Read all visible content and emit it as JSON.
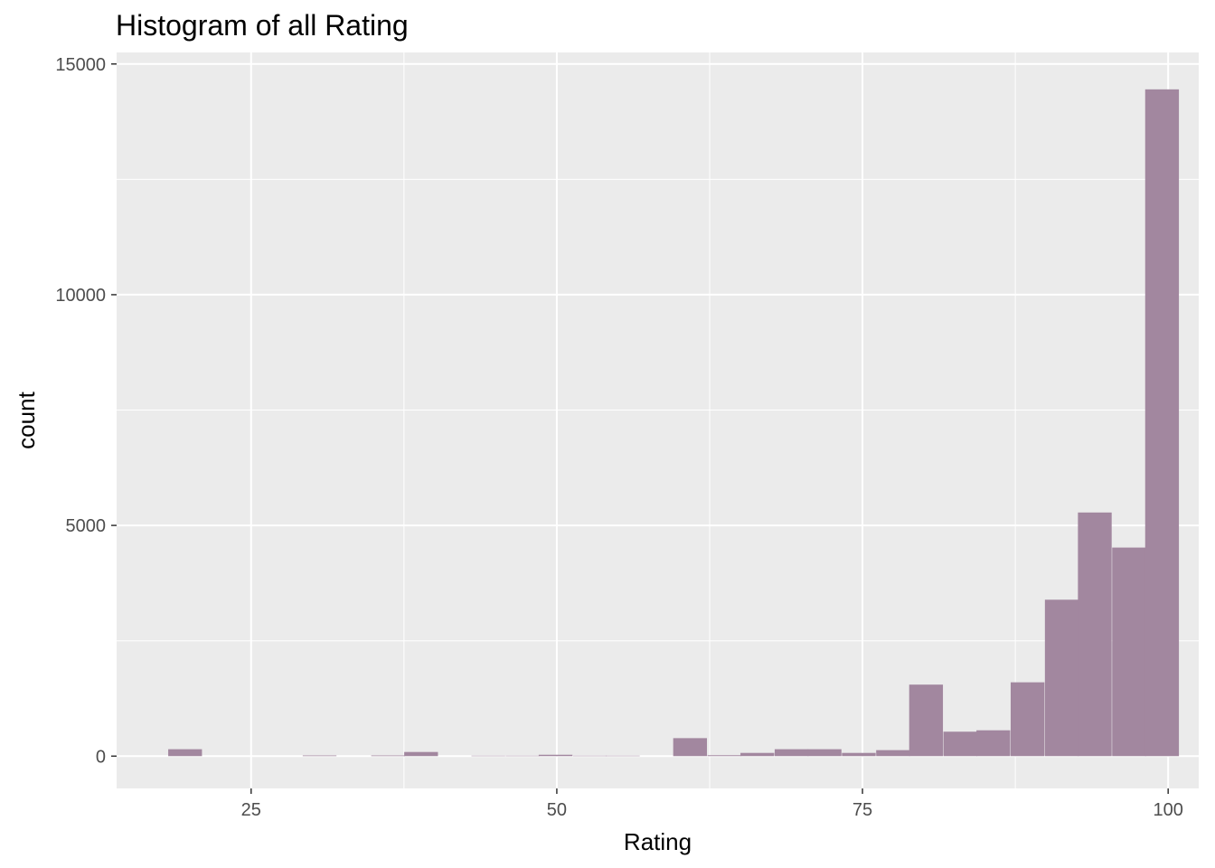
{
  "chart_data": {
    "type": "bar",
    "title": "Histogram of all Rating",
    "xlabel": "Rating",
    "ylabel": "count",
    "xlim": [
      14.0,
      102.5
    ],
    "ylim": [
      -700,
      15250
    ],
    "xticks": [
      25,
      50,
      75,
      100
    ],
    "yticks": [
      0,
      5000,
      10000,
      15000
    ],
    "bin_width": 2.76,
    "bins": [
      {
        "x": 19.6,
        "count": 150
      },
      {
        "x": 30.6,
        "count": 15
      },
      {
        "x": 36.2,
        "count": 15
      },
      {
        "x": 38.9,
        "count": 90
      },
      {
        "x": 44.4,
        "count": 10
      },
      {
        "x": 47.2,
        "count": 10
      },
      {
        "x": 49.9,
        "count": 30
      },
      {
        "x": 52.7,
        "count": 10
      },
      {
        "x": 55.4,
        "count": 10
      },
      {
        "x": 60.9,
        "count": 390
      },
      {
        "x": 63.7,
        "count": 20
      },
      {
        "x": 66.4,
        "count": 70
      },
      {
        "x": 69.2,
        "count": 150
      },
      {
        "x": 71.9,
        "count": 150
      },
      {
        "x": 74.7,
        "count": 70
      },
      {
        "x": 77.5,
        "count": 130
      },
      {
        "x": 80.2,
        "count": 1550
      },
      {
        "x": 83.0,
        "count": 530
      },
      {
        "x": 85.7,
        "count": 560
      },
      {
        "x": 88.5,
        "count": 1600
      },
      {
        "x": 91.3,
        "count": 3390
      },
      {
        "x": 94.0,
        "count": 5280
      },
      {
        "x": 96.8,
        "count": 4520
      },
      {
        "x": 99.5,
        "count": 14450
      }
    ],
    "bar_color": "#a2879f",
    "panel_background": "#ebebeb",
    "grid": true,
    "legend": "none"
  }
}
